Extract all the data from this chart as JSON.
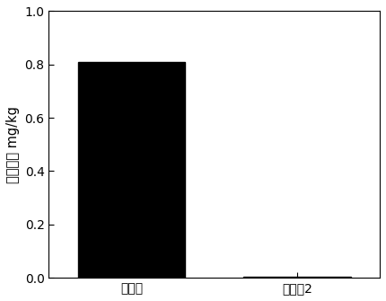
{
  "categories": [
    "对照组",
    "实施例2"
  ],
  "values": [
    0.81,
    0.005
  ],
  "bar_color": "#000000",
  "ylabel": "砟浸出量 mg/kg",
  "ylim": [
    0.0,
    1.0
  ],
  "yticks": [
    0.0,
    0.2,
    0.4,
    0.6,
    0.8,
    1.0
  ],
  "background_color": "#ffffff",
  "bar_width": 0.65,
  "ylabel_fontsize": 10.5,
  "tick_fontsize": 10,
  "xlim": [
    -0.5,
    1.5
  ]
}
